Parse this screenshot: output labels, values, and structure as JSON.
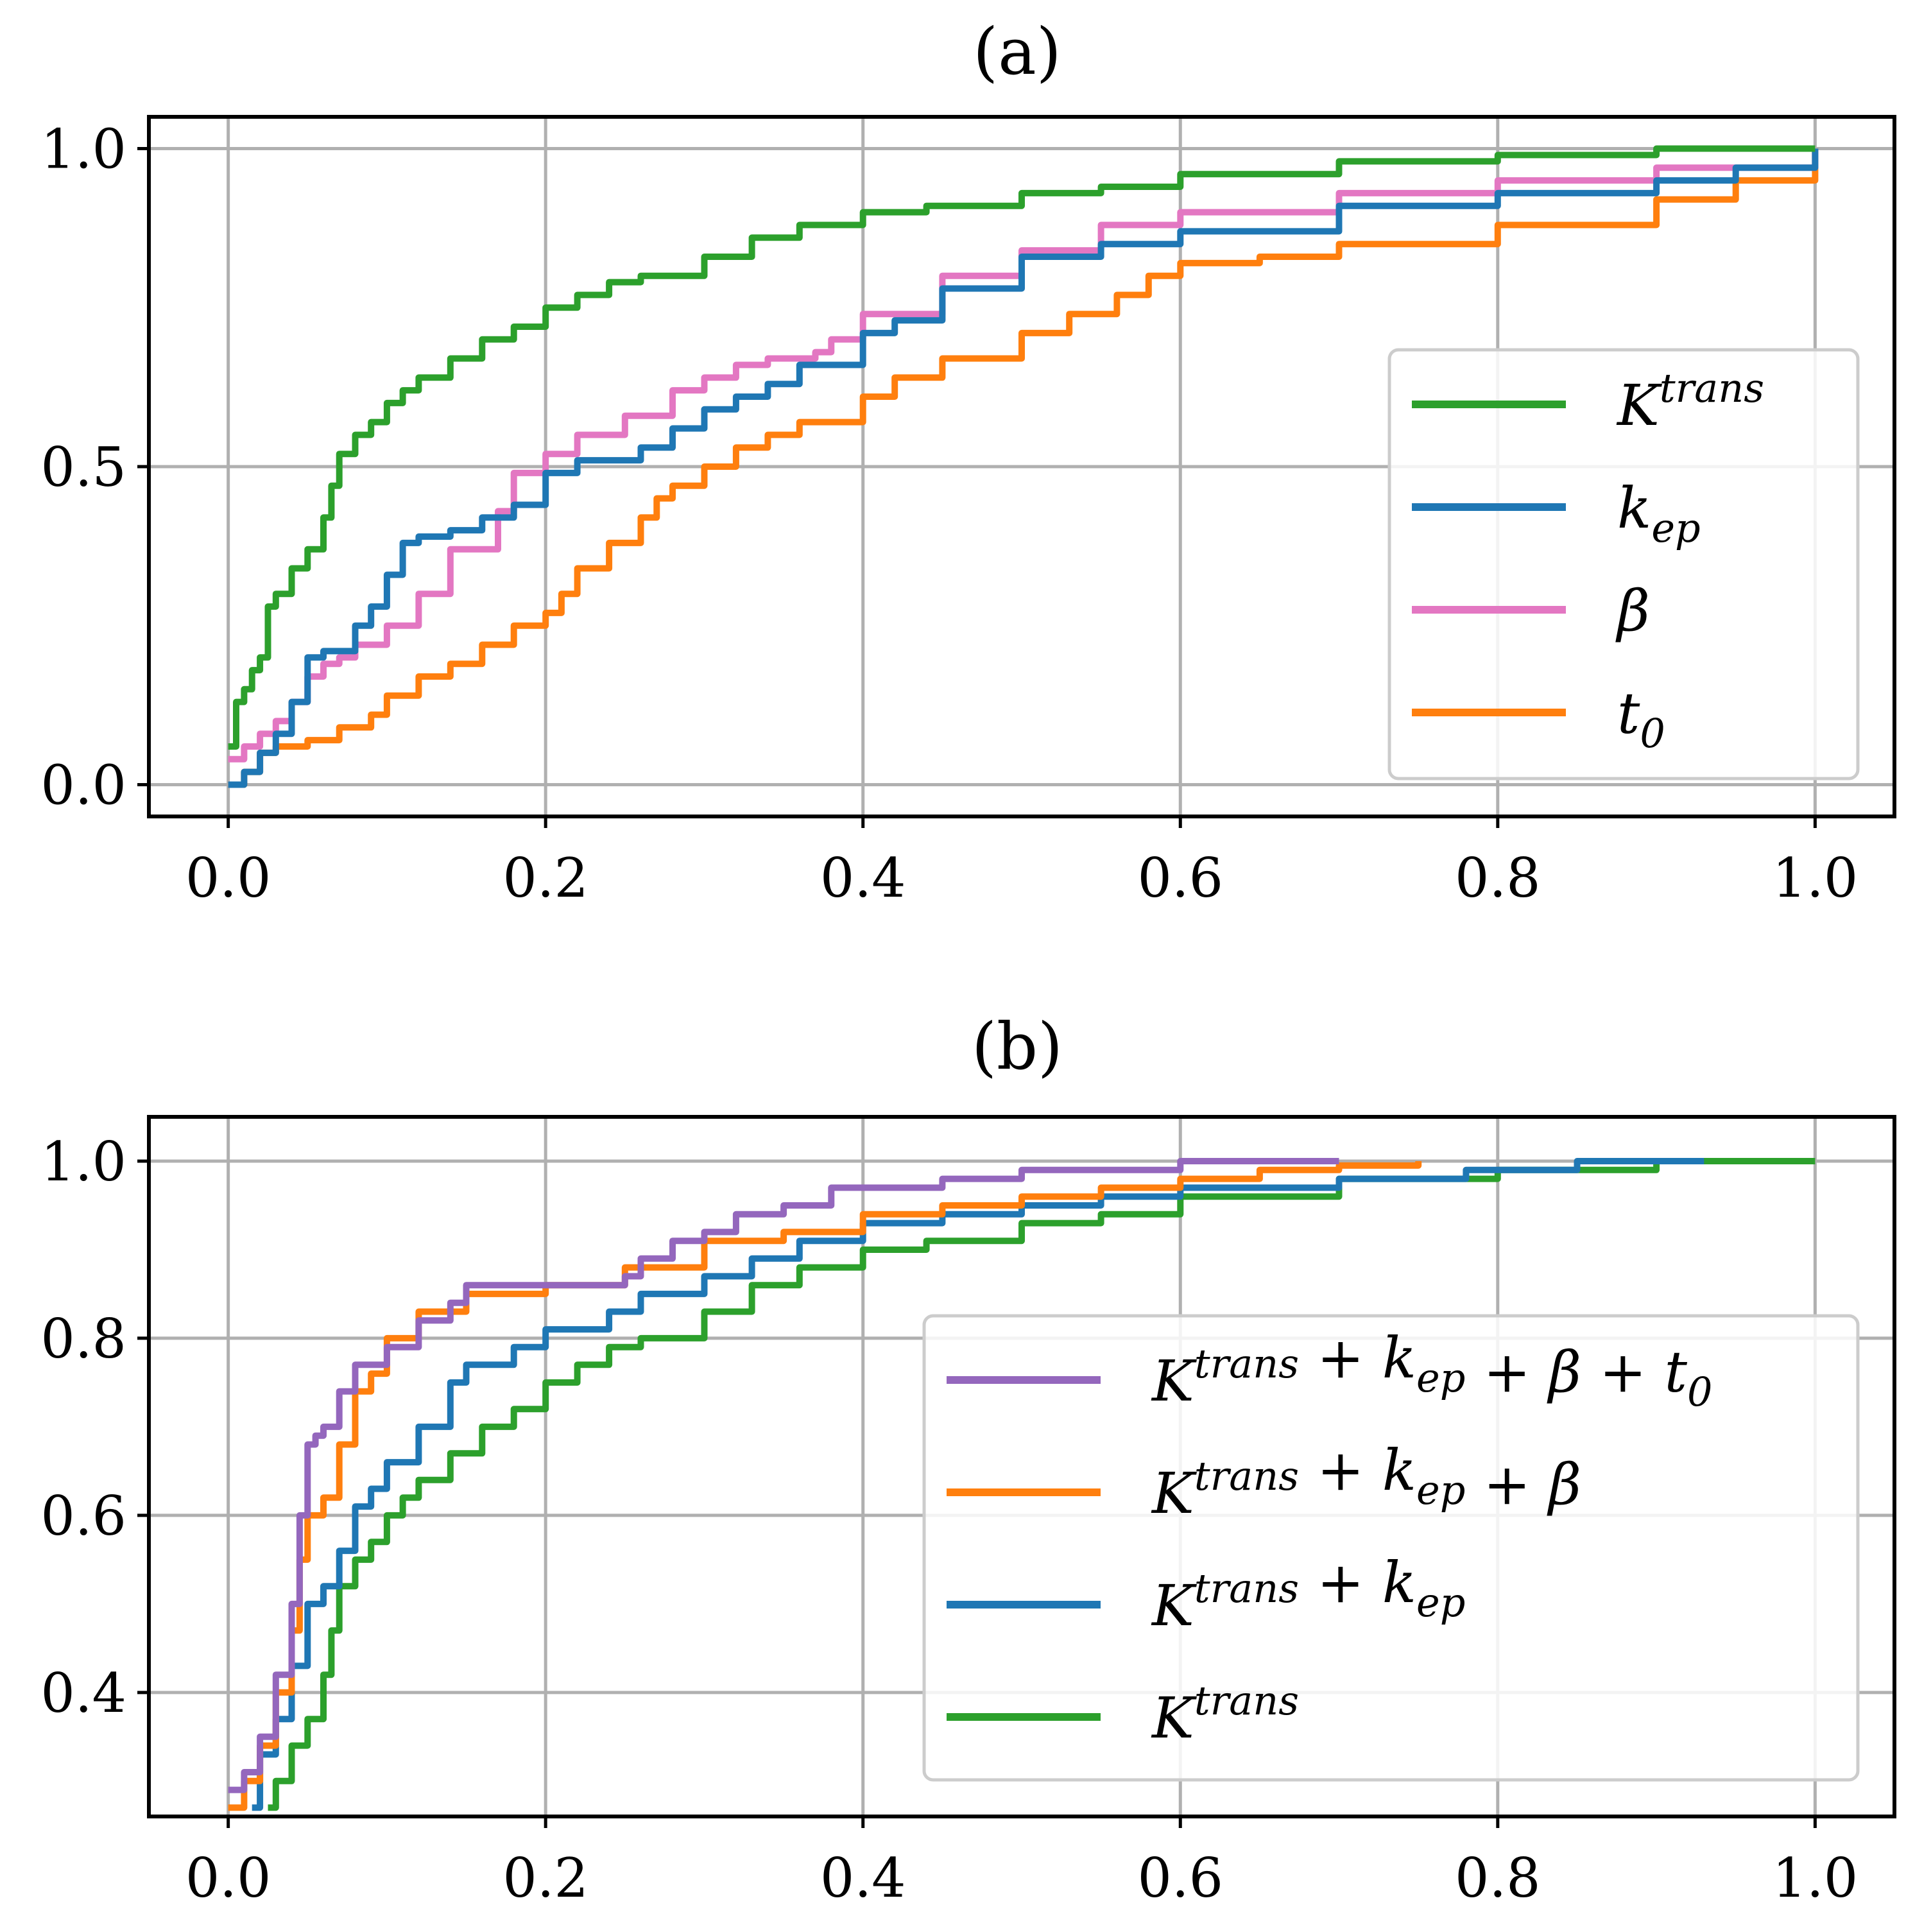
{
  "colors": {
    "green": "#2ca02c",
    "blue": "#1f77b4",
    "pink": "#e377c2",
    "orange": "#ff7f0e",
    "purple": "#9467bd"
  },
  "chart_data": [
    {
      "type": "line",
      "title": "(a)",
      "xlabel": "",
      "ylabel": "",
      "xlim": [
        -0.05,
        1.05
      ],
      "ylim": [
        -0.05,
        1.05
      ],
      "xticks": [
        0.0,
        0.2,
        0.4,
        0.6,
        0.8,
        1.0
      ],
      "xtick_labels": [
        "0.0",
        "0.2",
        "0.4",
        "0.6",
        "0.8",
        "1.0"
      ],
      "yticks": [
        0.0,
        0.5,
        1.0
      ],
      "ytick_labels": [
        "0.0",
        "0.5",
        "1.0"
      ],
      "grid": true,
      "legend_position": "right",
      "series": [
        {
          "name": "K^trans",
          "legend": {
            "base": "K",
            "sup": "trans"
          },
          "color": "#2ca02c",
          "x": [
            0.0,
            0.005,
            0.01,
            0.015,
            0.02,
            0.025,
            0.03,
            0.04,
            0.05,
            0.06,
            0.065,
            0.07,
            0.08,
            0.09,
            0.1,
            0.11,
            0.12,
            0.14,
            0.16,
            0.18,
            0.2,
            0.22,
            0.24,
            0.26,
            0.3,
            0.33,
            0.36,
            0.4,
            0.44,
            0.5,
            0.55,
            0.6,
            0.7,
            0.8,
            0.9,
            1.0
          ],
          "y": [
            0.06,
            0.13,
            0.15,
            0.18,
            0.2,
            0.28,
            0.3,
            0.34,
            0.37,
            0.42,
            0.47,
            0.52,
            0.55,
            0.57,
            0.6,
            0.62,
            0.64,
            0.67,
            0.7,
            0.72,
            0.75,
            0.77,
            0.79,
            0.8,
            0.83,
            0.86,
            0.88,
            0.9,
            0.91,
            0.93,
            0.94,
            0.96,
            0.98,
            0.99,
            1.0,
            1.0
          ]
        },
        {
          "name": "k_ep",
          "legend": {
            "base": "k",
            "sub": "ep"
          },
          "color": "#1f77b4",
          "x": [
            0.0,
            0.01,
            0.02,
            0.03,
            0.04,
            0.05,
            0.06,
            0.08,
            0.09,
            0.1,
            0.11,
            0.12,
            0.14,
            0.16,
            0.18,
            0.2,
            0.22,
            0.26,
            0.28,
            0.3,
            0.32,
            0.34,
            0.36,
            0.4,
            0.42,
            0.45,
            0.5,
            0.55,
            0.6,
            0.7,
            0.8,
            0.9,
            0.95,
            1.0
          ],
          "y": [
            0.0,
            0.02,
            0.05,
            0.08,
            0.13,
            0.2,
            0.21,
            0.25,
            0.28,
            0.33,
            0.38,
            0.39,
            0.4,
            0.42,
            0.44,
            0.49,
            0.51,
            0.53,
            0.56,
            0.59,
            0.61,
            0.63,
            0.66,
            0.71,
            0.73,
            0.78,
            0.83,
            0.85,
            0.87,
            0.91,
            0.93,
            0.95,
            0.97,
            1.0
          ]
        },
        {
          "name": "β",
          "legend": {
            "base": "β"
          },
          "color": "#e377c2",
          "x": [
            0.0,
            0.01,
            0.02,
            0.03,
            0.04,
            0.05,
            0.06,
            0.07,
            0.08,
            0.1,
            0.12,
            0.14,
            0.17,
            0.18,
            0.2,
            0.22,
            0.25,
            0.28,
            0.3,
            0.32,
            0.34,
            0.37,
            0.38,
            0.4,
            0.45,
            0.5,
            0.55,
            0.6,
            0.7,
            0.8,
            0.9,
            1.0
          ],
          "y": [
            0.04,
            0.06,
            0.08,
            0.1,
            0.13,
            0.17,
            0.19,
            0.2,
            0.22,
            0.25,
            0.3,
            0.37,
            0.43,
            0.49,
            0.52,
            0.55,
            0.58,
            0.62,
            0.64,
            0.66,
            0.67,
            0.68,
            0.7,
            0.74,
            0.8,
            0.84,
            0.88,
            0.9,
            0.93,
            0.95,
            0.97,
            1.0
          ]
        },
        {
          "name": "t_0",
          "legend": {
            "base": "t",
            "sub": "0"
          },
          "color": "#ff7f0e",
          "x": [
            0.0,
            0.01,
            0.02,
            0.03,
            0.05,
            0.07,
            0.09,
            0.1,
            0.12,
            0.14,
            0.16,
            0.18,
            0.2,
            0.21,
            0.22,
            0.24,
            0.26,
            0.27,
            0.28,
            0.3,
            0.32,
            0.34,
            0.36,
            0.4,
            0.42,
            0.45,
            0.5,
            0.53,
            0.56,
            0.58,
            0.6,
            0.65,
            0.7,
            0.8,
            0.9,
            0.95,
            1.0
          ],
          "y": [
            0.0,
            0.02,
            0.05,
            0.06,
            0.07,
            0.09,
            0.11,
            0.14,
            0.17,
            0.19,
            0.22,
            0.25,
            0.27,
            0.3,
            0.34,
            0.38,
            0.42,
            0.45,
            0.47,
            0.5,
            0.53,
            0.55,
            0.57,
            0.61,
            0.64,
            0.67,
            0.71,
            0.74,
            0.77,
            0.8,
            0.82,
            0.83,
            0.85,
            0.88,
            0.92,
            0.95,
            1.0
          ]
        }
      ]
    },
    {
      "type": "line",
      "title": "(b)",
      "xlabel": "",
      "ylabel": "",
      "xlim": [
        -0.05,
        1.05
      ],
      "ylim": [
        0.26,
        1.05
      ],
      "xticks": [
        0.0,
        0.2,
        0.4,
        0.6,
        0.8,
        1.0
      ],
      "xtick_labels": [
        "0.0",
        "0.2",
        "0.4",
        "0.6",
        "0.8",
        "1.0"
      ],
      "yticks": [
        0.4,
        0.6,
        0.8,
        1.0
      ],
      "ytick_labels": [
        "0.4",
        "0.6",
        "0.8",
        "1.0"
      ],
      "grid": true,
      "legend_position": "right",
      "series": [
        {
          "name": "K^trans + k_ep + β + t_0",
          "legend": {
            "parts": [
              {
                "t": "K"
              },
              {
                "t": "trans",
                "p": "up"
              },
              {
                "t": " + ",
                "p": "op"
              },
              {
                "t": "k"
              },
              {
                "t": "ep",
                "p": "dn"
              },
              {
                "t": " + ",
                "p": "op"
              },
              {
                "t": "β"
              },
              {
                "t": " + ",
                "p": "op"
              },
              {
                "t": "t"
              },
              {
                "t": "0",
                "p": "dn"
              }
            ]
          },
          "color": "#9467bd",
          "x": [
            0.0,
            0.01,
            0.02,
            0.03,
            0.04,
            0.045,
            0.05,
            0.055,
            0.06,
            0.07,
            0.08,
            0.1,
            0.12,
            0.14,
            0.15,
            0.2,
            0.25,
            0.26,
            0.28,
            0.3,
            0.32,
            0.35,
            0.38,
            0.4,
            0.45,
            0.5,
            0.55,
            0.6,
            0.65,
            0.7
          ],
          "y": [
            0.29,
            0.31,
            0.35,
            0.42,
            0.5,
            0.6,
            0.68,
            0.69,
            0.7,
            0.74,
            0.77,
            0.79,
            0.82,
            0.84,
            0.86,
            0.86,
            0.87,
            0.89,
            0.91,
            0.92,
            0.94,
            0.95,
            0.97,
            0.97,
            0.98,
            0.99,
            0.99,
            1.0,
            1.0,
            1.0
          ]
        },
        {
          "name": "K^trans + k_ep + β",
          "legend": {
            "parts": [
              {
                "t": "K"
              },
              {
                "t": "trans",
                "p": "up"
              },
              {
                "t": " + ",
                "p": "op"
              },
              {
                "t": "k"
              },
              {
                "t": "ep",
                "p": "dn"
              },
              {
                "t": " + ",
                "p": "op"
              },
              {
                "t": "β"
              }
            ]
          },
          "color": "#ff7f0e",
          "x": [
            0.0,
            0.01,
            0.02,
            0.03,
            0.04,
            0.045,
            0.05,
            0.06,
            0.07,
            0.08,
            0.09,
            0.1,
            0.12,
            0.15,
            0.2,
            0.25,
            0.3,
            0.35,
            0.4,
            0.45,
            0.5,
            0.55,
            0.6,
            0.65,
            0.7,
            0.75
          ],
          "y": [
            0.27,
            0.3,
            0.34,
            0.4,
            0.47,
            0.55,
            0.6,
            0.62,
            0.68,
            0.74,
            0.76,
            0.8,
            0.83,
            0.85,
            0.86,
            0.88,
            0.91,
            0.92,
            0.94,
            0.95,
            0.96,
            0.97,
            0.98,
            0.99,
            0.995,
            1.0
          ]
        },
        {
          "name": "K^trans + k_ep",
          "legend": {
            "parts": [
              {
                "t": "K"
              },
              {
                "t": "trans",
                "p": "up"
              },
              {
                "t": " + ",
                "p": "op"
              },
              {
                "t": "k"
              },
              {
                "t": "ep",
                "p": "dn"
              }
            ]
          },
          "color": "#1f77b4",
          "x": [
            0.015,
            0.02,
            0.03,
            0.04,
            0.05,
            0.06,
            0.07,
            0.08,
            0.09,
            0.1,
            0.12,
            0.14,
            0.15,
            0.18,
            0.2,
            0.24,
            0.26,
            0.3,
            0.33,
            0.36,
            0.4,
            0.45,
            0.5,
            0.55,
            0.6,
            0.7,
            0.78,
            0.85,
            0.93
          ],
          "y": [
            0.27,
            0.33,
            0.37,
            0.43,
            0.5,
            0.52,
            0.56,
            0.61,
            0.63,
            0.66,
            0.7,
            0.75,
            0.77,
            0.79,
            0.81,
            0.83,
            0.85,
            0.87,
            0.89,
            0.91,
            0.93,
            0.94,
            0.95,
            0.96,
            0.97,
            0.98,
            0.99,
            1.0,
            1.0
          ]
        },
        {
          "name": "K^trans",
          "legend": {
            "parts": [
              {
                "t": "K"
              },
              {
                "t": "trans",
                "p": "up"
              }
            ]
          },
          "color": "#2ca02c",
          "x": [
            0.025,
            0.03,
            0.04,
            0.05,
            0.06,
            0.065,
            0.07,
            0.08,
            0.09,
            0.1,
            0.11,
            0.12,
            0.14,
            0.16,
            0.18,
            0.2,
            0.22,
            0.24,
            0.26,
            0.3,
            0.33,
            0.36,
            0.4,
            0.44,
            0.5,
            0.55,
            0.6,
            0.7,
            0.8,
            0.9,
            1.0
          ],
          "y": [
            0.27,
            0.3,
            0.34,
            0.37,
            0.42,
            0.47,
            0.52,
            0.55,
            0.57,
            0.6,
            0.62,
            0.64,
            0.67,
            0.7,
            0.72,
            0.75,
            0.77,
            0.79,
            0.8,
            0.83,
            0.86,
            0.88,
            0.9,
            0.91,
            0.93,
            0.94,
            0.96,
            0.98,
            0.99,
            1.0,
            1.0
          ]
        }
      ]
    }
  ]
}
